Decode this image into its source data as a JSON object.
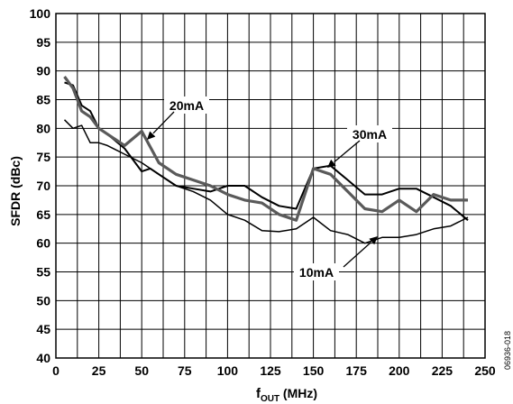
{
  "chart_data": {
    "type": "line",
    "title": "",
    "xlabel_main": "f",
    "xlabel_sub": "OUT",
    "xlabel_unit": " (MHz)",
    "ylabel": "SFDR (dBc)",
    "xlim": [
      0,
      250
    ],
    "ylim": [
      40,
      100
    ],
    "x_ticks": [
      0,
      25,
      50,
      75,
      100,
      125,
      150,
      175,
      200,
      225,
      250
    ],
    "y_ticks": [
      40,
      45,
      50,
      55,
      60,
      65,
      70,
      75,
      80,
      85,
      90,
      95,
      100
    ],
    "x_tick_labels": [
      "0",
      "25",
      "50",
      "75",
      "100",
      "125",
      "150",
      "175",
      "200",
      "225",
      "250"
    ],
    "y_tick_labels": [
      "40",
      "45",
      "50",
      "55",
      "60",
      "65",
      "70",
      "75",
      "80",
      "85",
      "90",
      "95",
      "100"
    ],
    "grid": true,
    "figure_id": "06936-018",
    "series": [
      {
        "name": "10mA",
        "color": "#000000",
        "x": [
          5,
          10,
          15,
          20,
          25,
          30,
          40,
          50,
          60,
          70,
          80,
          90,
          100,
          110,
          120,
          130,
          140,
          150,
          160,
          170,
          180,
          190,
          200,
          210,
          220,
          230,
          240
        ],
        "y": [
          81.5,
          80,
          80.5,
          77.5,
          77.5,
          77,
          75.5,
          74,
          72,
          70,
          69,
          67.5,
          65,
          64,
          62.2,
          62,
          62.5,
          64.5,
          62.2,
          61.5,
          60,
          61,
          61,
          61.5,
          62.5,
          63,
          64.5
        ]
      },
      {
        "name": "20mA",
        "color": "#5a5a5a",
        "x": [
          5,
          10,
          15,
          20,
          25,
          30,
          40,
          50,
          60,
          70,
          80,
          90,
          100,
          110,
          120,
          130,
          140,
          150,
          160,
          170,
          180,
          190,
          200,
          210,
          220,
          230,
          240
        ],
        "y": [
          89,
          87,
          83,
          82,
          80,
          79,
          77,
          79.5,
          74,
          72,
          71,
          70,
          68.5,
          67.5,
          67,
          65,
          64,
          73,
          72,
          69,
          66,
          65.5,
          67.5,
          65.5,
          68.5,
          67.5,
          67.5
        ]
      },
      {
        "name": "30mA",
        "color": "#000000",
        "x": [
          5,
          10,
          15,
          20,
          25,
          30,
          40,
          50,
          55,
          60,
          70,
          80,
          90,
          100,
          110,
          120,
          130,
          140,
          150,
          160,
          170,
          180,
          190,
          200,
          210,
          220,
          230,
          240
        ],
        "y": [
          88,
          87.5,
          84,
          83,
          80,
          79,
          76.5,
          72.5,
          73,
          72,
          70,
          69.5,
          69,
          70,
          70,
          68,
          66.5,
          66,
          73,
          73.5,
          71,
          68.5,
          68.5,
          69.5,
          69.5,
          68,
          66.5,
          64
        ]
      }
    ],
    "annotations": [
      {
        "text": "20mA"
      },
      {
        "text": "30mA"
      },
      {
        "text": "10mA"
      }
    ]
  }
}
